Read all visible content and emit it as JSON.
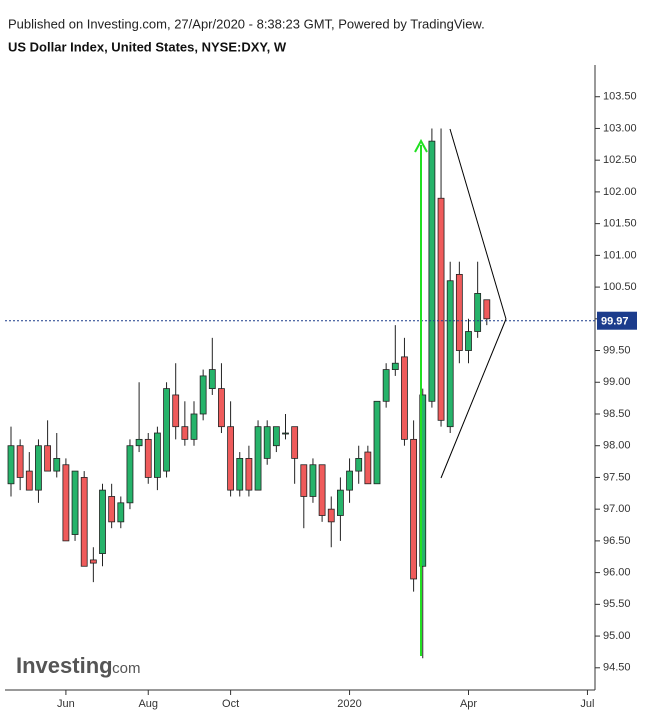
{
  "chart_data": {
    "type": "candlestick",
    "subtitle": "Published on Investing.com, 27/Apr/2020 - 8:38:23 GMT, Powered by TradingView.",
    "title": "US Dollar Index, United States, NYSE:DXY, W",
    "watermark": "Investing",
    "watermark_suffix": ".com",
    "categories": [
      null,
      null,
      null,
      null,
      null,
      null,
      "Jun",
      null,
      null,
      null,
      null,
      null,
      null,
      null,
      null,
      "Aug",
      null,
      null,
      null,
      null,
      null,
      null,
      null,
      null,
      "Oct",
      null,
      null,
      null,
      null,
      null,
      null,
      null,
      null,
      null,
      null,
      null,
      null,
      "2020",
      null,
      null,
      null,
      null,
      null,
      null,
      null,
      null,
      null,
      null,
      null,
      null,
      "Apr",
      null,
      null,
      null,
      null,
      null,
      null,
      null,
      null,
      null,
      null,
      null,
      null,
      "Jul",
      null
    ],
    "open": [
      97.4,
      98.0,
      97.6,
      97.3,
      98.0,
      97.6,
      97.7,
      96.6,
      97.5,
      96.2,
      96.3,
      97.2,
      96.8,
      97.1,
      98.0,
      98.1,
      97.5,
      97.6,
      98.8,
      98.3,
      98.1,
      98.5,
      98.9,
      98.9,
      98.3,
      97.3,
      97.8,
      97.3,
      97.8,
      98.0,
      98.2,
      98.3,
      97.7,
      97.2,
      97.7,
      97.0,
      96.9,
      97.3,
      97.6,
      97.9,
      97.4,
      98.7,
      99.2,
      99.4,
      98.1,
      96.1,
      98.7,
      101.9,
      98.3,
      100.7,
      99.5,
      99.8,
      100.3,
      null,
      null,
      null,
      null,
      null,
      null,
      null,
      null,
      null,
      null,
      null,
      null
    ],
    "high": [
      98.3,
      98.1,
      97.9,
      98.1,
      98.4,
      98.2,
      97.8,
      97.6,
      97.6,
      96.4,
      97.4,
      97.4,
      97.2,
      98.1,
      99.0,
      98.2,
      98.3,
      99.0,
      99.3,
      98.7,
      98.7,
      99.2,
      99.7,
      99.3,
      98.7,
      97.9,
      98.0,
      98.4,
      98.4,
      98.3,
      98.5,
      98.3,
      97.7,
      97.8,
      97.7,
      97.2,
      97.5,
      97.8,
      98.0,
      98.0,
      98.7,
      99.3,
      99.9,
      99.7,
      98.4,
      98.9,
      103.0,
      103.0,
      100.9,
      100.9,
      100.0,
      100.9,
      100.3,
      null,
      null,
      null,
      null,
      null,
      null,
      null,
      null,
      null,
      null,
      null,
      null
    ],
    "low": [
      97.2,
      97.3,
      97.3,
      97.1,
      97.6,
      97.5,
      96.5,
      96.5,
      96.1,
      95.85,
      96.1,
      96.7,
      96.7,
      97.0,
      97.9,
      97.4,
      97.3,
      97.5,
      98.1,
      98.0,
      98.0,
      98.4,
      98.8,
      98.2,
      97.2,
      97.2,
      97.2,
      97.3,
      97.7,
      97.9,
      98.1,
      97.4,
      96.7,
      97.1,
      96.8,
      96.4,
      96.5,
      97.1,
      97.4,
      97.4,
      97.4,
      98.6,
      99.1,
      98.0,
      95.7,
      94.65,
      98.6,
      98.3,
      98.2,
      99.3,
      99.3,
      99.7,
      99.9,
      null,
      null,
      null,
      null,
      null,
      null,
      null,
      null,
      null,
      null,
      null,
      null
    ],
    "close": [
      98.0,
      97.5,
      97.3,
      98.0,
      97.6,
      97.8,
      96.5,
      97.6,
      96.1,
      96.15,
      97.3,
      96.8,
      97.1,
      98.0,
      98.1,
      97.5,
      98.2,
      98.9,
      98.3,
      98.1,
      98.5,
      99.1,
      99.2,
      98.3,
      97.3,
      97.8,
      97.3,
      98.3,
      98.3,
      98.3,
      98.2,
      97.8,
      97.2,
      97.7,
      96.9,
      96.8,
      97.3,
      97.6,
      97.8,
      97.4,
      98.7,
      99.2,
      99.3,
      98.1,
      95.9,
      98.8,
      102.8,
      98.4,
      100.6,
      99.5,
      99.8,
      100.4,
      100.0,
      null,
      null,
      null,
      null,
      null,
      null,
      null,
      null,
      null,
      null,
      null,
      null
    ],
    "up_color": "#26b36a",
    "down_color": "#ef5b5b",
    "last_price": 99.97,
    "last_price_color": "#1c3c8c",
    "ylim": [
      94.15,
      104.0
    ],
    "yticks": [
      {
        "value": 94.5,
        "label": "94.50"
      },
      {
        "value": 95,
        "label": "95.00"
      },
      {
        "value": 95.5,
        "label": "95.50"
      },
      {
        "value": 96,
        "label": "96.00"
      },
      {
        "value": 96.5,
        "label": "96.50"
      },
      {
        "value": 97,
        "label": "97.00"
      },
      {
        "value": 97.5,
        "label": "97.50"
      },
      {
        "value": 98,
        "label": "98.00"
      },
      {
        "value": 98.5,
        "label": "98.50"
      },
      {
        "value": 99,
        "label": "99.00"
      },
      {
        "value": 99.5,
        "label": "99.50"
      },
      {
        "value": 100,
        "label": "100.00"
      },
      {
        "value": 100.5,
        "label": "100.50"
      },
      {
        "value": 101,
        "label": "101.00"
      },
      {
        "value": 101.5,
        "label": "101.50"
      },
      {
        "value": 102,
        "label": "102.00"
      },
      {
        "value": 102.5,
        "label": "102.50"
      },
      {
        "value": 103,
        "label": "103.00"
      },
      {
        "value": 103.5,
        "label": "103.50"
      }
    ],
    "grid": false
  }
}
